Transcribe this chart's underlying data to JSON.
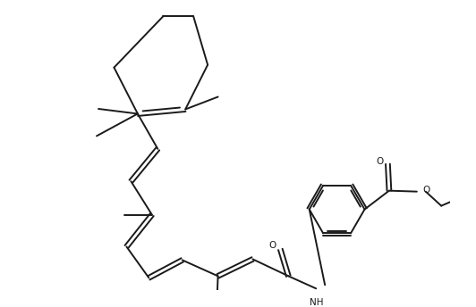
{
  "background_color": "#ffffff",
  "line_color": "#1a1a1a",
  "line_width": 1.4,
  "figsize": [
    5.32,
    3.44
  ],
  "dpi": 100,
  "xlim": [
    0,
    9.5
  ],
  "ylim": [
    0,
    6.5
  ]
}
